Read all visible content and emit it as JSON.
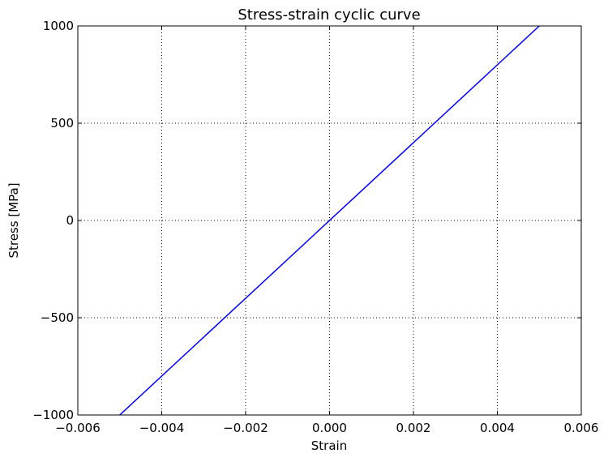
{
  "chart_data": {
    "type": "line",
    "title": "Stress-strain cyclic curve",
    "xlabel": "Strain",
    "ylabel": "Stress [MPa]",
    "xlim": [
      -0.006,
      0.006
    ],
    "ylim": [
      -1000,
      1000
    ],
    "xticks": [
      -0.006,
      -0.004,
      -0.002,
      0.0,
      0.002,
      0.004,
      0.006
    ],
    "xtick_labels": [
      "−0.006",
      "−0.004",
      "−0.002",
      "0.000",
      "0.002",
      "0.004",
      "0.006"
    ],
    "yticks": [
      -1000,
      -500,
      0,
      500,
      1000
    ],
    "ytick_labels": [
      "−1000",
      "−500",
      "0",
      "500",
      "1000"
    ],
    "grid": true,
    "series": [
      {
        "color": "#0000ff",
        "x": [
          -0.005,
          0.005
        ],
        "y": [
          -1000,
          1000
        ]
      }
    ]
  }
}
